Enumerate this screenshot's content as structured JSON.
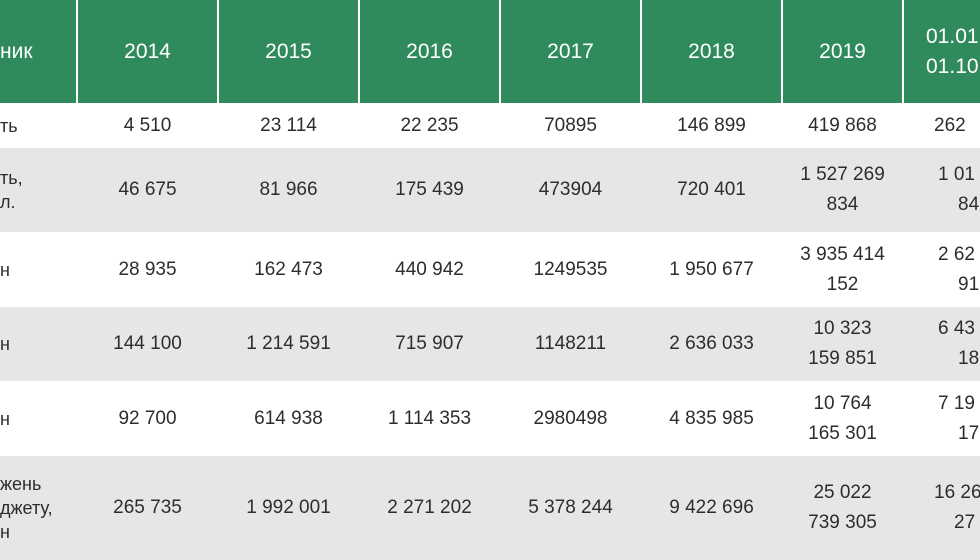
{
  "header": {
    "label": "ник",
    "years": [
      "2014",
      "2015",
      "2016",
      "2017",
      "2018",
      "2019"
    ],
    "last_line1": "01.01",
    "last_line2": "01.10"
  },
  "rows": [
    {
      "label": [
        "ть"
      ],
      "values": [
        "4 510",
        "23 114",
        "22 235",
        "70895",
        "146 899"
      ],
      "v2019": [
        "419 868"
      ],
      "last": [
        "262"
      ]
    },
    {
      "label": [
        "ть,",
        "л."
      ],
      "values": [
        "46 675",
        "81 966",
        "175 439",
        "473904",
        "720 401"
      ],
      "v2019": [
        "1 527 269",
        "834"
      ],
      "last": [
        "1 01",
        "84"
      ]
    },
    {
      "label": [
        "",
        "н"
      ],
      "values": [
        "28 935",
        "162 473",
        "440 942",
        "1249535",
        "1 950 677"
      ],
      "v2019": [
        "3 935 414",
        "152"
      ],
      "last": [
        "2 62",
        "91"
      ]
    },
    {
      "label": [
        "",
        "н"
      ],
      "values": [
        "144 100",
        "1 214 591",
        "715 907",
        "1148211",
        "2 636 033"
      ],
      "v2019": [
        "10 323",
        "159 851"
      ],
      "last": [
        "6 43",
        "18"
      ]
    },
    {
      "label": [
        "",
        "н"
      ],
      "values": [
        "92 700",
        "614 938",
        "1 114 353",
        "2980498",
        "4 835 985"
      ],
      "v2019": [
        "10 764",
        "165 301"
      ],
      "last": [
        "7 19",
        "17"
      ]
    },
    {
      "label": [
        "жень",
        "джету,",
        "н"
      ],
      "values": [
        "265 735",
        "1 992 001",
        "2 271 202",
        "5 378 244",
        "9 422 696"
      ],
      "v2019": [
        "25 022",
        "739 305"
      ],
      "last": [
        "16 26",
        "27"
      ]
    }
  ]
}
